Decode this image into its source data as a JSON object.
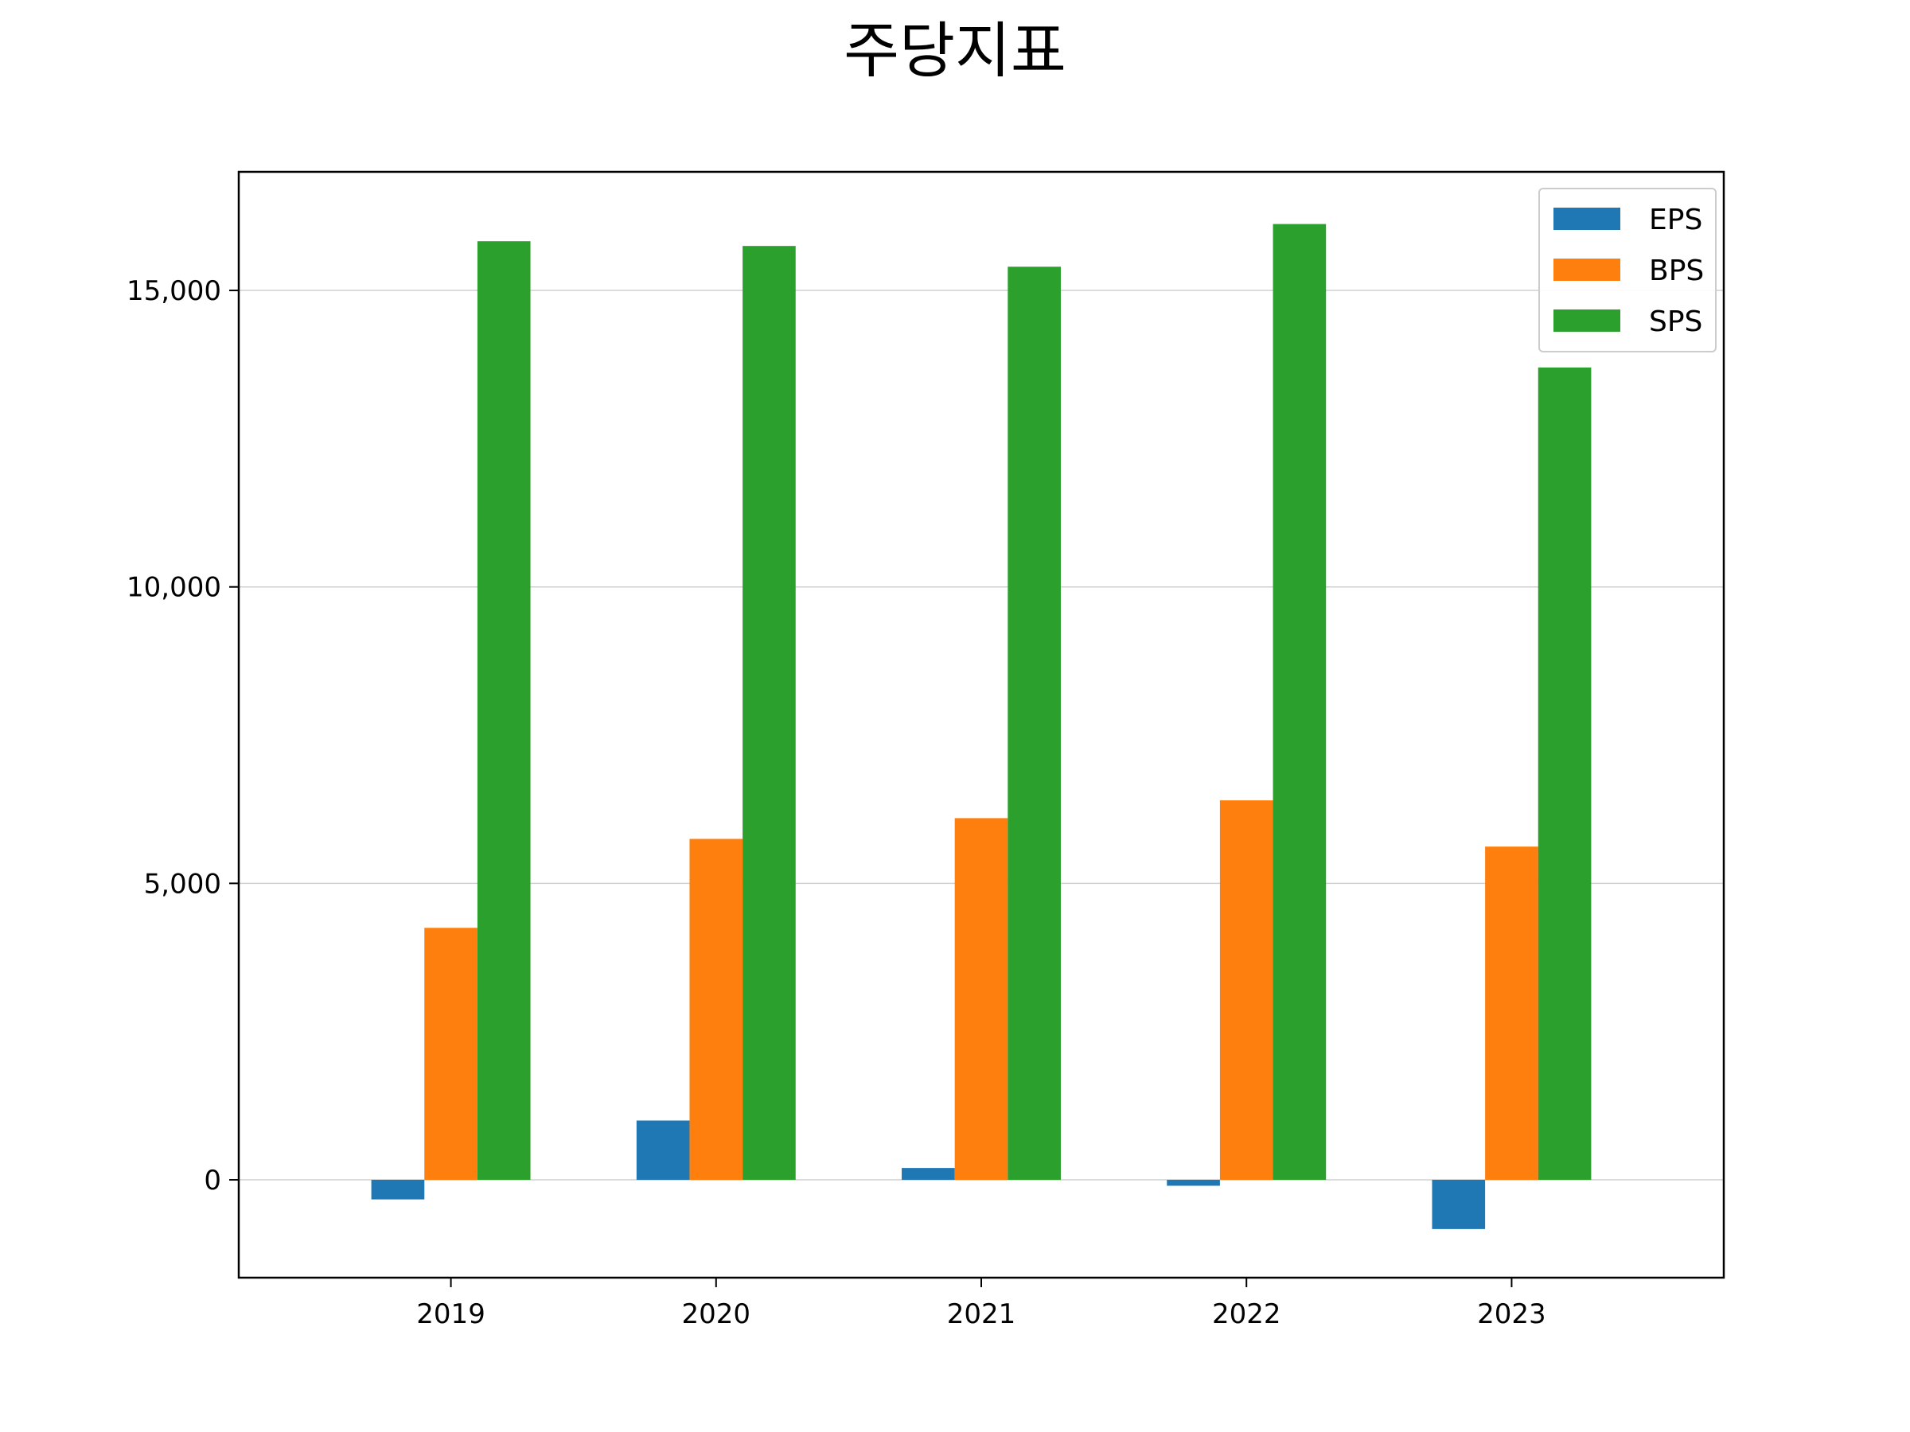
{
  "chart_data": {
    "type": "bar",
    "title": "주당지표",
    "xlabel": "",
    "ylabel": "",
    "categories": [
      "2019",
      "2020",
      "2021",
      "2022",
      "2023"
    ],
    "series": [
      {
        "name": "EPS",
        "color": "#1f77b4",
        "values": [
          -330,
          1000,
          200,
          -100,
          -830
        ]
      },
      {
        "name": "BPS",
        "color": "#ff7f0e",
        "values": [
          4250,
          5750,
          6100,
          6400,
          5620
        ]
      },
      {
        "name": "SPS",
        "color": "#2ca02c",
        "values": [
          15830,
          15750,
          15400,
          16120,
          13700
        ]
      }
    ],
    "ylim": [
      -1650,
      17000
    ],
    "yticks": [
      0,
      5000,
      10000,
      15000
    ],
    "ytick_labels": [
      "0",
      "5,000",
      "10,000",
      "15,000"
    ],
    "grid": "y",
    "legend_position": "top-right"
  }
}
